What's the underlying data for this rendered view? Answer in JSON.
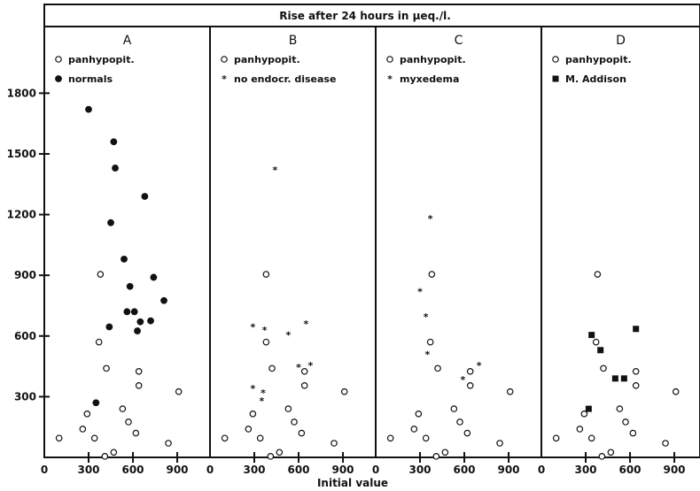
{
  "figure": {
    "title": "Rise after 24 hours in μeq./l.",
    "xlabel": "Initial value",
    "y_ticks": [
      "300",
      "600",
      "900",
      "1200",
      "1500",
      "1800"
    ],
    "x_ticks": [
      "0",
      "300",
      "600",
      "900"
    ]
  },
  "chart_data": [
    {
      "type": "scatter",
      "panel": "A",
      "xlim": [
        0,
        1100
      ],
      "ylim": [
        0,
        2000
      ],
      "series": [
        {
          "name": "panhypopit.",
          "marker": "open-circle",
          "points": [
            [
              100,
              95
            ],
            [
              260,
              140
            ],
            [
              290,
              215
            ],
            [
              340,
              95
            ],
            [
              370,
              570
            ],
            [
              380,
              905
            ],
            [
              410,
              5
            ],
            [
              420,
              440
            ],
            [
              470,
              25
            ],
            [
              530,
              240
            ],
            [
              570,
              175
            ],
            [
              620,
              120
            ],
            [
              640,
              425
            ],
            [
              640,
              355
            ],
            [
              840,
              70
            ],
            [
              910,
              325
            ]
          ]
        },
        {
          "name": "normals",
          "marker": "filled-circle",
          "points": [
            [
              300,
              1720
            ],
            [
              350,
              270
            ],
            [
              440,
              645
            ],
            [
              450,
              1160
            ],
            [
              470,
              1560
            ],
            [
              480,
              1430
            ],
            [
              540,
              980
            ],
            [
              560,
              720
            ],
            [
              580,
              845
            ],
            [
              610,
              720
            ],
            [
              630,
              625
            ],
            [
              650,
              670
            ],
            [
              680,
              1290
            ],
            [
              720,
              675
            ],
            [
              740,
              890
            ],
            [
              810,
              775
            ]
          ]
        }
      ]
    },
    {
      "type": "scatter",
      "panel": "B",
      "xlim": [
        0,
        1100
      ],
      "ylim": [
        0,
        2000
      ],
      "series": [
        {
          "name": "panhypopit.",
          "marker": "open-circle",
          "points": [
            [
              100,
              95
            ],
            [
              260,
              140
            ],
            [
              290,
              215
            ],
            [
              340,
              95
            ],
            [
              380,
              570
            ],
            [
              380,
              905
            ],
            [
              410,
              5
            ],
            [
              420,
              440
            ],
            [
              470,
              25
            ],
            [
              530,
              240
            ],
            [
              570,
              175
            ],
            [
              620,
              120
            ],
            [
              640,
              425
            ],
            [
              640,
              355
            ],
            [
              840,
              70
            ],
            [
              910,
              325
            ]
          ]
        },
        {
          "name": "no endocr. disease",
          "marker": "star",
          "points": [
            [
              290,
              645
            ],
            [
              290,
              340
            ],
            [
              350,
              280
            ],
            [
              360,
              320
            ],
            [
              370,
              630
            ],
            [
              440,
              1420
            ],
            [
              530,
              605
            ],
            [
              600,
              445
            ],
            [
              650,
              660
            ],
            [
              680,
              455
            ]
          ]
        }
      ]
    },
    {
      "type": "scatter",
      "panel": "C",
      "xlim": [
        0,
        1100
      ],
      "ylim": [
        0,
        2000
      ],
      "series": [
        {
          "name": "panhypopit.",
          "marker": "open-circle",
          "points": [
            [
              100,
              95
            ],
            [
              260,
              140
            ],
            [
              290,
              215
            ],
            [
              340,
              95
            ],
            [
              370,
              570
            ],
            [
              380,
              905
            ],
            [
              410,
              5
            ],
            [
              420,
              440
            ],
            [
              470,
              25
            ],
            [
              530,
              240
            ],
            [
              570,
              175
            ],
            [
              620,
              120
            ],
            [
              640,
              425
            ],
            [
              640,
              355
            ],
            [
              840,
              70
            ],
            [
              910,
              325
            ]
          ]
        },
        {
          "name": "myxedema",
          "marker": "star",
          "points": [
            [
              300,
              820
            ],
            [
              340,
              695
            ],
            [
              350,
              510
            ],
            [
              370,
              1180
            ],
            [
              590,
              385
            ],
            [
              700,
              455
            ]
          ]
        }
      ]
    },
    {
      "type": "scatter",
      "panel": "D",
      "xlim": [
        0,
        1100
      ],
      "ylim": [
        0,
        2000
      ],
      "series": [
        {
          "name": "panhypopit.",
          "marker": "open-circle",
          "points": [
            [
              100,
              95
            ],
            [
              260,
              140
            ],
            [
              290,
              215
            ],
            [
              340,
              95
            ],
            [
              370,
              570
            ],
            [
              380,
              905
            ],
            [
              410,
              5
            ],
            [
              420,
              440
            ],
            [
              470,
              25
            ],
            [
              530,
              240
            ],
            [
              570,
              175
            ],
            [
              620,
              120
            ],
            [
              640,
              425
            ],
            [
              640,
              355
            ],
            [
              840,
              70
            ],
            [
              910,
              325
            ]
          ]
        },
        {
          "name": "M. Addison",
          "marker": "filled-square",
          "points": [
            [
              320,
              240
            ],
            [
              340,
              605
            ],
            [
              400,
              530
            ],
            [
              500,
              390
            ],
            [
              560,
              390
            ],
            [
              640,
              635
            ]
          ]
        }
      ]
    }
  ]
}
